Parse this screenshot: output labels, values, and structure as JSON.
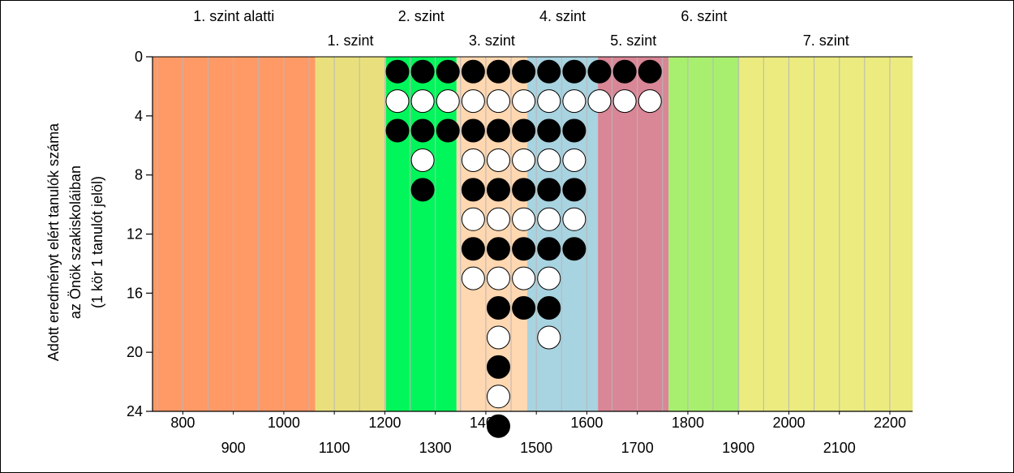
{
  "chart_data": {
    "type": "scatter",
    "title": "",
    "xlabel": "",
    "ylabel_lines": [
      "Adott eredményt elért tanulók száma",
      "az Önök szakiskoláiban",
      "(1 kör 1 tanulót jelöl)"
    ],
    "xlim": [
      740,
      2245
    ],
    "ylim": [
      0,
      24
    ],
    "y_inverted": true,
    "grid": true,
    "x_ticks_row1": [
      800,
      1000,
      1200,
      1400,
      1600,
      1800,
      2000,
      2200
    ],
    "x_ticks_row2": [
      900,
      1100,
      1300,
      1500,
      1700,
      1900,
      2100
    ],
    "y_ticks": [
      0,
      4,
      8,
      12,
      16,
      20,
      24
    ],
    "bands": [
      {
        "label": "1. szint alatti",
        "x0": 740,
        "x1": 1062,
        "color": "#ff9966",
        "label_row": 1
      },
      {
        "label": "1. szint",
        "x0": 1062,
        "x1": 1202,
        "color": "#e9df7d",
        "label_row": 2
      },
      {
        "label": "2. szint",
        "x0": 1202,
        "x1": 1342,
        "color": "#00f65a",
        "label_row": 1
      },
      {
        "label": "3. szint",
        "x0": 1342,
        "x1": 1482,
        "color": "#ffd7b0",
        "label_row": 2
      },
      {
        "label": "4. szint",
        "x0": 1482,
        "x1": 1622,
        "color": "#a8d3e0",
        "label_row": 1
      },
      {
        "label": "5. szint",
        "x0": 1622,
        "x1": 1762,
        "color": "#d98696",
        "label_row": 2
      },
      {
        "label": "6. szint",
        "x0": 1762,
        "x1": 1902,
        "color": "#a8ef70",
        "label_row": 1
      },
      {
        "label": "7. szint",
        "x0": 1902,
        "x1": 2245,
        "color": "#ebeb80",
        "label_row": 2
      }
    ],
    "columns": [
      {
        "x": 1225,
        "count": 3
      },
      {
        "x": 1275,
        "count": 5
      },
      {
        "x": 1325,
        "count": 3
      },
      {
        "x": 1375,
        "count": 8
      },
      {
        "x": 1425,
        "count": 13
      },
      {
        "x": 1475,
        "count": 9
      },
      {
        "x": 1525,
        "count": 10
      },
      {
        "x": 1575,
        "count": 7
      },
      {
        "x": 1625,
        "count": 2
      },
      {
        "x": 1675,
        "count": 2
      },
      {
        "x": 1725,
        "count": 2
      }
    ]
  }
}
